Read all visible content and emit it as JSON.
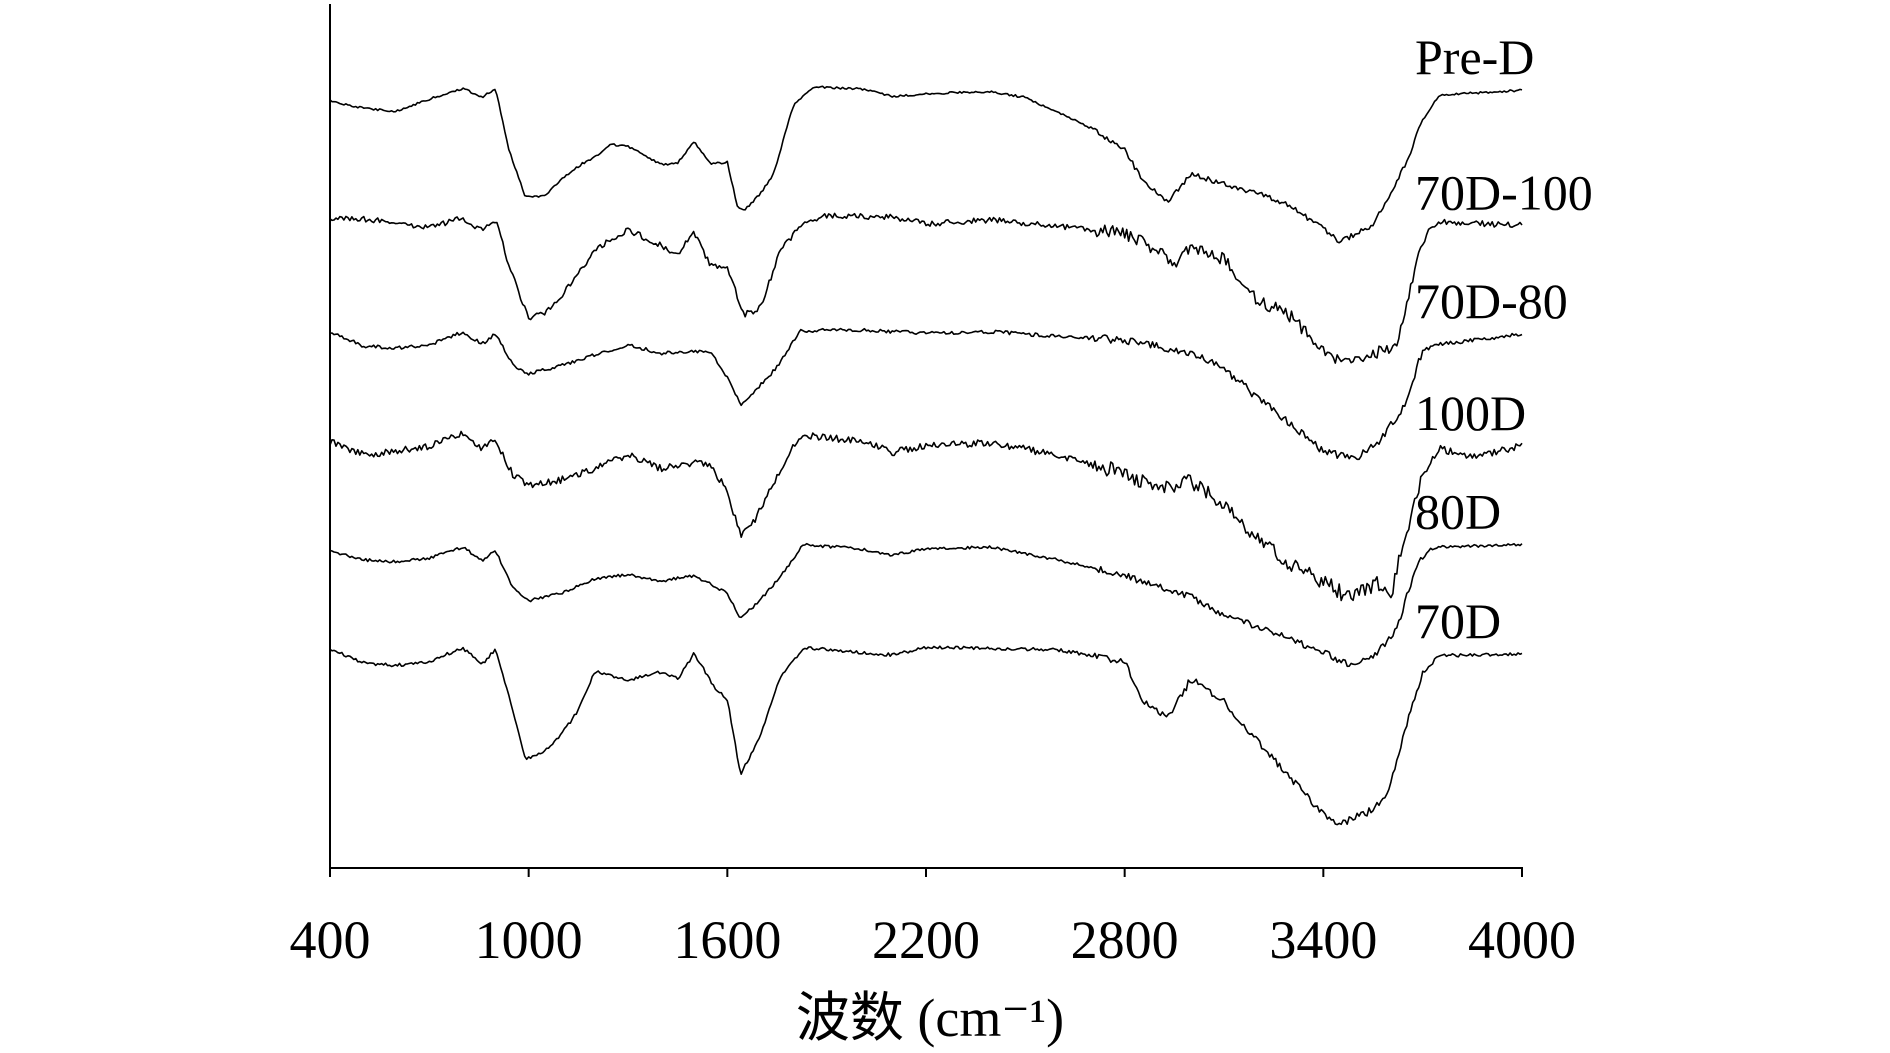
{
  "chart_data": {
    "type": "line",
    "xlabel": "波数 (cm⁻¹)",
    "ylabel": "",
    "xlim": [
      400,
      4000
    ],
    "xticks": [
      400,
      1000,
      1600,
      2200,
      2800,
      3400,
      4000
    ],
    "xtick_labels": [
      "400",
      "1000",
      "1600",
      "2200",
      "2800",
      "3400",
      "4000"
    ],
    "grid": false,
    "legend": "labels at right end of each trace",
    "ylim": [
      0,
      100
    ],
    "series": [
      {
        "name": "Pre-D",
        "points": [
          [
            400,
            92.5
          ],
          [
            500,
            91.6
          ],
          [
            600,
            91.2
          ],
          [
            700,
            92.7
          ],
          [
            800,
            94.0
          ],
          [
            860,
            93.0
          ],
          [
            900,
            94.0
          ],
          [
            940,
            86.5
          ],
          [
            990,
            80.6
          ],
          [
            1050,
            80.8
          ],
          [
            1100,
            82.8
          ],
          [
            1160,
            84.7
          ],
          [
            1200,
            85.6
          ],
          [
            1250,
            87.1
          ],
          [
            1300,
            86.9
          ],
          [
            1400,
            84.6
          ],
          [
            1450,
            84.8
          ],
          [
            1500,
            87.4
          ],
          [
            1550,
            84.7
          ],
          [
            1600,
            84.9
          ],
          [
            1630,
            79.5
          ],
          [
            1650,
            78.9
          ],
          [
            1700,
            81.0
          ],
          [
            1740,
            83.5
          ],
          [
            1800,
            92.0
          ],
          [
            1860,
            94.2
          ],
          [
            2000,
            94.0
          ],
          [
            2100,
            93.0
          ],
          [
            2200,
            93.4
          ],
          [
            2400,
            93.6
          ],
          [
            2500,
            92.9
          ],
          [
            2600,
            91.0
          ],
          [
            2700,
            89.1
          ],
          [
            2800,
            86.5
          ],
          [
            2850,
            82.9
          ],
          [
            2930,
            79.9
          ],
          [
            3000,
            83.5
          ],
          [
            3100,
            82.2
          ],
          [
            3200,
            81.1
          ],
          [
            3300,
            79.5
          ],
          [
            3400,
            76.7
          ],
          [
            3450,
            75.1
          ],
          [
            3550,
            77.1
          ],
          [
            3650,
            84.8
          ],
          [
            3700,
            90.1
          ],
          [
            3750,
            93.2
          ],
          [
            4000,
            93.8
          ]
        ]
      },
      {
        "name": "70D-100",
        "points": [
          [
            400,
            78.0
          ],
          [
            500,
            77.9
          ],
          [
            600,
            77.4
          ],
          [
            700,
            76.8
          ],
          [
            800,
            78.0
          ],
          [
            860,
            76.4
          ],
          [
            900,
            77.8
          ],
          [
            940,
            72.3
          ],
          [
            1000,
            65.5
          ],
          [
            1050,
            66.4
          ],
          [
            1100,
            68.5
          ],
          [
            1200,
            74.0
          ],
          [
            1250,
            75.4
          ],
          [
            1300,
            76.6
          ],
          [
            1400,
            74.6
          ],
          [
            1450,
            73.6
          ],
          [
            1500,
            76.3
          ],
          [
            1550,
            72.1
          ],
          [
            1600,
            71.8
          ],
          [
            1650,
            66.1
          ],
          [
            1700,
            66.9
          ],
          [
            1760,
            74.0
          ],
          [
            1830,
            77.5
          ],
          [
            1900,
            78.3
          ],
          [
            2100,
            78.1
          ],
          [
            2200,
            77.3
          ],
          [
            2400,
            77.8
          ],
          [
            2600,
            77.0
          ],
          [
            2800,
            76.1
          ],
          [
            2900,
            74.0
          ],
          [
            2950,
            72.0
          ],
          [
            3000,
            74.5
          ],
          [
            3100,
            73.0
          ],
          [
            3200,
            68.0
          ],
          [
            3300,
            65.9
          ],
          [
            3400,
            61.9
          ],
          [
            3450,
            60.3
          ],
          [
            3550,
            61.4
          ],
          [
            3620,
            61.8
          ],
          [
            3680,
            72.5
          ],
          [
            3720,
            76.5
          ],
          [
            3750,
            77.5
          ],
          [
            3850,
            77.4
          ],
          [
            4000,
            77.1
          ]
        ]
      },
      {
        "name": "70D-80",
        "points": [
          [
            400,
            64.0
          ],
          [
            500,
            62.2
          ],
          [
            600,
            62.0
          ],
          [
            700,
            62.4
          ],
          [
            800,
            63.9
          ],
          [
            860,
            62.5
          ],
          [
            900,
            63.7
          ],
          [
            950,
            60.0
          ],
          [
            1000,
            58.8
          ],
          [
            1100,
            59.8
          ],
          [
            1200,
            61.2
          ],
          [
            1300,
            62.4
          ],
          [
            1400,
            61.3
          ],
          [
            1500,
            61.6
          ],
          [
            1550,
            61.6
          ],
          [
            1600,
            58.3
          ],
          [
            1640,
            54.9
          ],
          [
            1680,
            56.5
          ],
          [
            1750,
            59.6
          ],
          [
            1820,
            64.1
          ],
          [
            2000,
            64.2
          ],
          [
            2200,
            63.8
          ],
          [
            2400,
            64.0
          ],
          [
            2600,
            63.4
          ],
          [
            2800,
            63.0
          ],
          [
            3000,
            61.3
          ],
          [
            3100,
            59.4
          ],
          [
            3200,
            55.9
          ],
          [
            3300,
            52.6
          ],
          [
            3400,
            49.1
          ],
          [
            3500,
            48.5
          ],
          [
            3560,
            50.1
          ],
          [
            3640,
            54.4
          ],
          [
            3700,
            61.7
          ],
          [
            3750,
            62.4
          ],
          [
            4000,
            63.7
          ]
        ]
      },
      {
        "name": "100D",
        "points": [
          [
            400,
            50.4
          ],
          [
            500,
            48.8
          ],
          [
            600,
            49.2
          ],
          [
            700,
            49.9
          ],
          [
            800,
            51.3
          ],
          [
            860,
            49.6
          ],
          [
            900,
            50.6
          ],
          [
            950,
            46.5
          ],
          [
            1000,
            44.9
          ],
          [
            1100,
            45.7
          ],
          [
            1200,
            47.1
          ],
          [
            1300,
            48.8
          ],
          [
            1400,
            47.1
          ],
          [
            1500,
            47.8
          ],
          [
            1550,
            47.5
          ],
          [
            1600,
            44.2
          ],
          [
            1640,
            38.8
          ],
          [
            1680,
            40.5
          ],
          [
            1750,
            46.1
          ],
          [
            1820,
            51.2
          ],
          [
            2000,
            50.5
          ],
          [
            2100,
            49.1
          ],
          [
            2200,
            49.9
          ],
          [
            2400,
            50.3
          ],
          [
            2600,
            48.7
          ],
          [
            2800,
            46.5
          ],
          [
            2900,
            44.4
          ],
          [
            3000,
            45.5
          ],
          [
            3100,
            42.6
          ],
          [
            3200,
            38.5
          ],
          [
            3300,
            35.1
          ],
          [
            3400,
            33.2
          ],
          [
            3480,
            31.0
          ],
          [
            3560,
            33.0
          ],
          [
            3600,
            30.9
          ],
          [
            3650,
            39.2
          ],
          [
            3700,
            46.3
          ],
          [
            3750,
            49.6
          ],
          [
            3850,
            48.4
          ],
          [
            4000,
            49.9
          ]
        ]
      },
      {
        "name": "80D",
        "points": [
          [
            400,
            36.9
          ],
          [
            500,
            35.8
          ],
          [
            600,
            35.6
          ],
          [
            700,
            36.0
          ],
          [
            800,
            37.4
          ],
          [
            860,
            35.8
          ],
          [
            900,
            36.9
          ],
          [
            950,
            32.6
          ],
          [
            1000,
            30.8
          ],
          [
            1100,
            31.7
          ],
          [
            1200,
            33.5
          ],
          [
            1300,
            34.0
          ],
          [
            1400,
            33.2
          ],
          [
            1500,
            33.9
          ],
          [
            1550,
            32.8
          ],
          [
            1600,
            31.7
          ],
          [
            1640,
            28.6
          ],
          [
            1700,
            30.9
          ],
          [
            1760,
            33.7
          ],
          [
            1830,
            37.7
          ],
          [
            2000,
            37.2
          ],
          [
            2100,
            36.4
          ],
          [
            2200,
            37.2
          ],
          [
            2400,
            37.4
          ],
          [
            2600,
            35.8
          ],
          [
            2800,
            33.9
          ],
          [
            2900,
            32.5
          ],
          [
            3000,
            31.3
          ],
          [
            3100,
            28.9
          ],
          [
            3200,
            27.6
          ],
          [
            3300,
            26.0
          ],
          [
            3400,
            24.4
          ],
          [
            3480,
            22.8
          ],
          [
            3560,
            24.2
          ],
          [
            3620,
            27.1
          ],
          [
            3680,
            35.0
          ],
          [
            3720,
            37.1
          ],
          [
            3750,
            37.4
          ],
          [
            4000,
            37.7
          ]
        ]
      },
      {
        "name": "70D",
        "points": [
          [
            400,
            24.9
          ],
          [
            500,
            23.1
          ],
          [
            600,
            22.8
          ],
          [
            700,
            23.2
          ],
          [
            800,
            25.0
          ],
          [
            860,
            22.9
          ],
          [
            900,
            24.8
          ],
          [
            950,
            17.5
          ],
          [
            990,
            11.1
          ],
          [
            1050,
            12.3
          ],
          [
            1100,
            14.4
          ],
          [
            1150,
            17.2
          ],
          [
            1200,
            22.0
          ],
          [
            1300,
            21.0
          ],
          [
            1400,
            22.0
          ],
          [
            1450,
            21.1
          ],
          [
            1500,
            24.3
          ],
          [
            1560,
            20.1
          ],
          [
            1600,
            18.6
          ],
          [
            1640,
            9.3
          ],
          [
            1700,
            14.1
          ],
          [
            1760,
            21.3
          ],
          [
            1830,
            25.0
          ],
          [
            2000,
            24.4
          ],
          [
            2100,
            24.1
          ],
          [
            2200,
            25.0
          ],
          [
            2400,
            24.9
          ],
          [
            2600,
            24.7
          ],
          [
            2800,
            23.3
          ],
          [
            2850,
            18.7
          ],
          [
            2930,
            16.2
          ],
          [
            3000,
            21.1
          ],
          [
            3100,
            18.3
          ],
          [
            3200,
            13.4
          ],
          [
            3300,
            9.0
          ],
          [
            3400,
            4.4
          ],
          [
            3450,
            3.1
          ],
          [
            3550,
            5.0
          ],
          [
            3600,
            7.6
          ],
          [
            3650,
            15.2
          ],
          [
            3700,
            21.9
          ],
          [
            3750,
            24.0
          ],
          [
            4000,
            24.2
          ]
        ]
      }
    ]
  }
}
